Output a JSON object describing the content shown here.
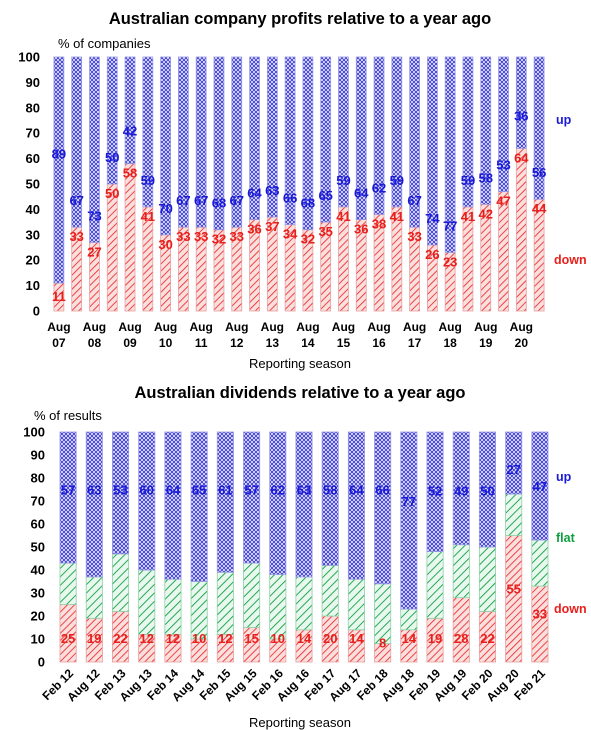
{
  "colors": {
    "down": "#e8201c",
    "up": "#1a1ad6",
    "flat": "#10a040",
    "down_fill": "#f4b4b4",
    "up_fill": "#b8b8ee",
    "flat_fill": "#a8e0b8"
  },
  "chart_data": [
    {
      "type": "bar",
      "stacked": true,
      "title": "Australian company profits relative to a year ago",
      "ylabel": "% of companies",
      "xlabel": "Reporting season",
      "ylim": [
        0,
        100
      ],
      "yticks": [
        0,
        10,
        20,
        30,
        40,
        50,
        60,
        70,
        80,
        90,
        100
      ],
      "xticks": [
        {
          "label": [
            "Aug",
            "07"
          ],
          "at": 0
        },
        {
          "label": [
            "Aug",
            "08"
          ],
          "at": 2
        },
        {
          "label": [
            "Aug",
            "09"
          ],
          "at": 4
        },
        {
          "label": [
            "Aug",
            "10"
          ],
          "at": 6
        },
        {
          "label": [
            "Aug",
            "11"
          ],
          "at": 8
        },
        {
          "label": [
            "Aug",
            "12"
          ],
          "at": 10
        },
        {
          "label": [
            "Aug",
            "13"
          ],
          "at": 12
        },
        {
          "label": [
            "Aug",
            "14"
          ],
          "at": 14
        },
        {
          "label": [
            "Aug",
            "15"
          ],
          "at": 16
        },
        {
          "label": [
            "Aug",
            "16"
          ],
          "at": 18
        },
        {
          "label": [
            "Aug",
            "17"
          ],
          "at": 20
        },
        {
          "label": [
            "Aug",
            "18"
          ],
          "at": 22
        },
        {
          "label": [
            "Aug",
            "19"
          ],
          "at": 24
        },
        {
          "label": [
            "Aug",
            "20"
          ],
          "at": 26
        }
      ],
      "series": [
        {
          "name": "down",
          "values": [
            11,
            33,
            27,
            50,
            58,
            41,
            30,
            33,
            33,
            32,
            33,
            36,
            37,
            34,
            32,
            35,
            41,
            36,
            38,
            41,
            33,
            26,
            23,
            41,
            42,
            47,
            64,
            44
          ]
        },
        {
          "name": "up",
          "values": [
            89,
            67,
            73,
            50,
            42,
            59,
            70,
            67,
            67,
            68,
            67,
            64,
            63,
            66,
            68,
            65,
            59,
            64,
            62,
            59,
            67,
            74,
            77,
            59,
            58,
            53,
            36,
            56
          ]
        }
      ],
      "legend": {
        "down": "down",
        "up": "up"
      }
    },
    {
      "type": "bar",
      "stacked": true,
      "title": "Australian dividends relative to a year ago",
      "ylabel": "% of results",
      "xlabel": "Reporting season",
      "ylim": [
        0,
        100
      ],
      "yticks": [
        0,
        10,
        20,
        30,
        40,
        50,
        60,
        70,
        80,
        90,
        100
      ],
      "categories": [
        "Feb 12",
        "Aug 12",
        "Feb 13",
        "Aug 13",
        "Feb 14",
        "Aug 14",
        "Feb 15",
        "Aug 15",
        "Feb 16",
        "Aug 16",
        "Feb 17",
        "Aug 17",
        "Feb 18",
        "Aug 18",
        "Feb 19",
        "Aug 19",
        "Feb 20",
        "Aug 20",
        "Feb 21"
      ],
      "series": [
        {
          "name": "down",
          "values": [
            25,
            19,
            22,
            12,
            12,
            10,
            12,
            15,
            10,
            14,
            20,
            14,
            8,
            14,
            19,
            28,
            22,
            55,
            33
          ]
        },
        {
          "name": "flat",
          "values": [
            18,
            18,
            25,
            28,
            24,
            25,
            27,
            28,
            28,
            23,
            22,
            22,
            26,
            9,
            29,
            23,
            28,
            18,
            20
          ]
        },
        {
          "name": "up",
          "values": [
            57,
            63,
            53,
            60,
            64,
            65,
            61,
            57,
            62,
            63,
            58,
            64,
            66,
            77,
            52,
            49,
            50,
            27,
            47
          ]
        }
      ],
      "legend": {
        "down": "down",
        "flat": "flat",
        "up": "up"
      }
    }
  ]
}
